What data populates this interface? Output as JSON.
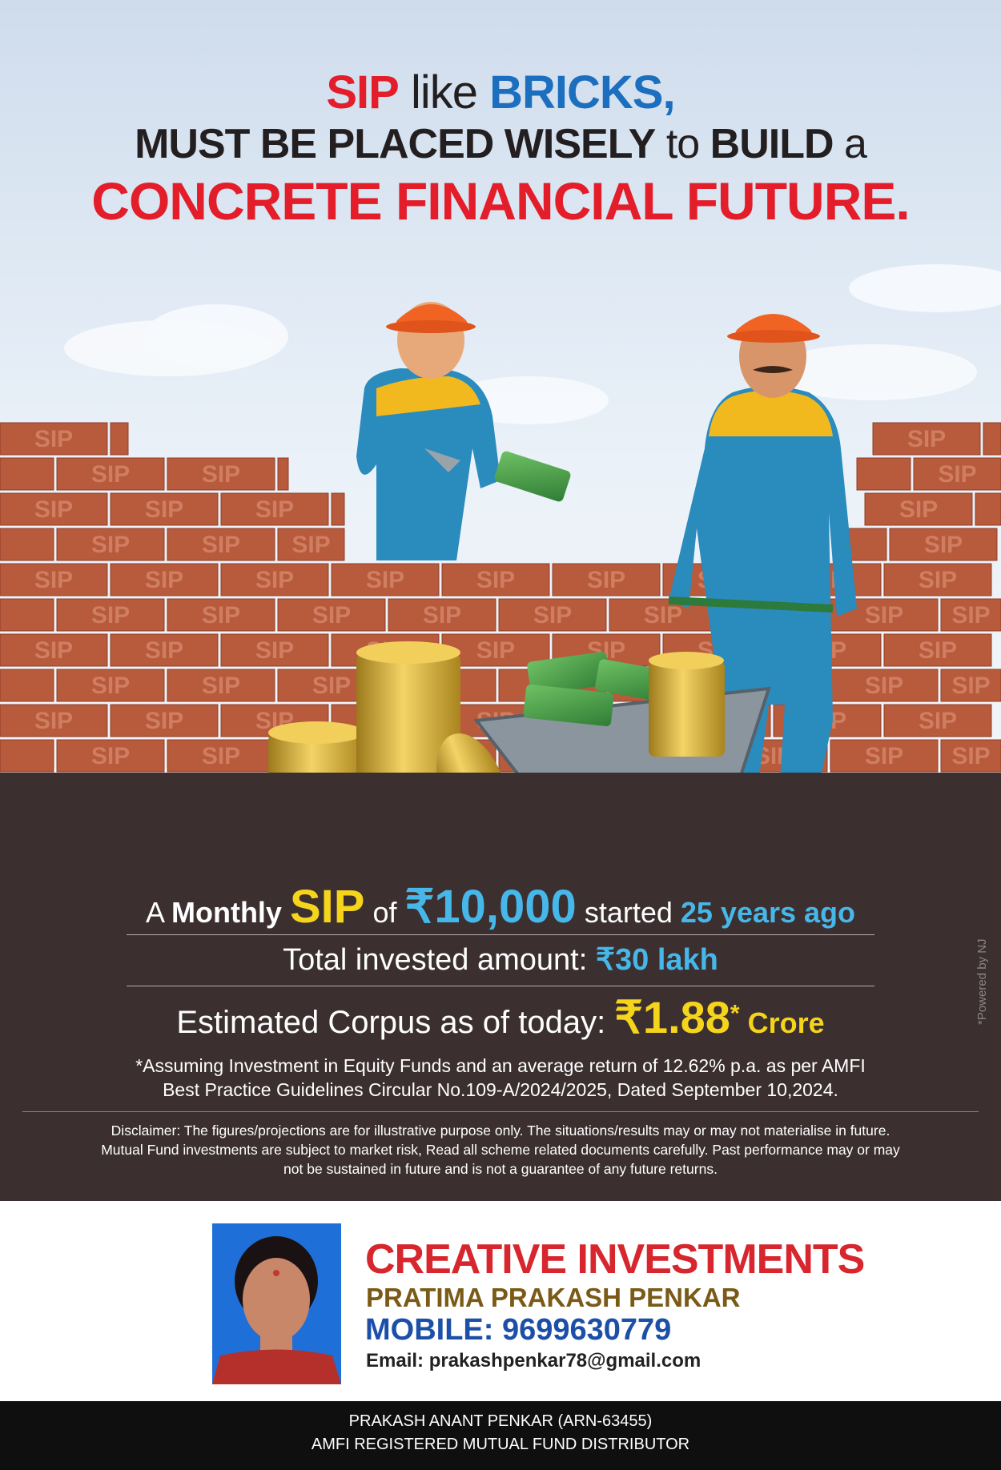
{
  "headline": {
    "line1_word1": "SIP",
    "line1_word2": " like ",
    "line1_word3": "BRICKS,",
    "line2_part1": "MUST BE PLACED WISELY",
    "line2_part2": " to ",
    "line2_part3": "BUILD",
    "line2_part4": " a",
    "line3": "CONCRETE FINANCIAL FUTURE."
  },
  "illustration": {
    "brick_label": "SIP"
  },
  "stats": {
    "line1_a": "A ",
    "line1_monthly": "Monthly",
    "line1_sip": "SIP",
    "line1_of": " of ",
    "line1_amount": "₹10,000",
    "line1_started": " started ",
    "line1_years": "25 years ago",
    "line2_label": "Total invested amount: ",
    "line2_value": "₹30 lakh",
    "line3_label": "Estimated Corpus as of today: ",
    "line3_value": "₹1.88",
    "line3_star": "*",
    "line3_unit": " Crore"
  },
  "footnote": {
    "line1": "*Assuming Investment in Equity Funds and an average return of 12.62% p.a. as per AMFI",
    "line2": "Best Practice  Guidelines Circular No.109-A/2024/2025, Dated September 10,2024."
  },
  "disclaimer": {
    "line1": "Disclaimer: The figures/projections are for illustrative purpose only. The situations/results may or may not materialise in future.",
    "line2": "Mutual Fund investments are subject to market risk, Read all scheme related documents carefully. Past performance may or may",
    "line3": "not be sustained in future and is not a guarantee of any future returns."
  },
  "powered_by": "*Powered by NJ",
  "contact": {
    "company": "CREATIVE INVESTMENTS",
    "name": "PRATIMA PRAKASH PENKAR",
    "mobile": "MOBILE: 9699630779",
    "email": "Email: prakashpenkar78@gmail.com"
  },
  "footer": {
    "line1": "PRAKASH ANANT PENKAR (ARN-63455)",
    "line2": "AMFI REGISTERED MUTUAL FUND DISTRIBUTOR"
  },
  "colors": {
    "accent_red": "#e31d2a",
    "accent_blue": "#1c6fbf",
    "panel_brown": "#3b2f30",
    "highlight_yellow": "#f5d41c",
    "highlight_cyan": "#46b7e8",
    "brick": "#b85a3c"
  }
}
